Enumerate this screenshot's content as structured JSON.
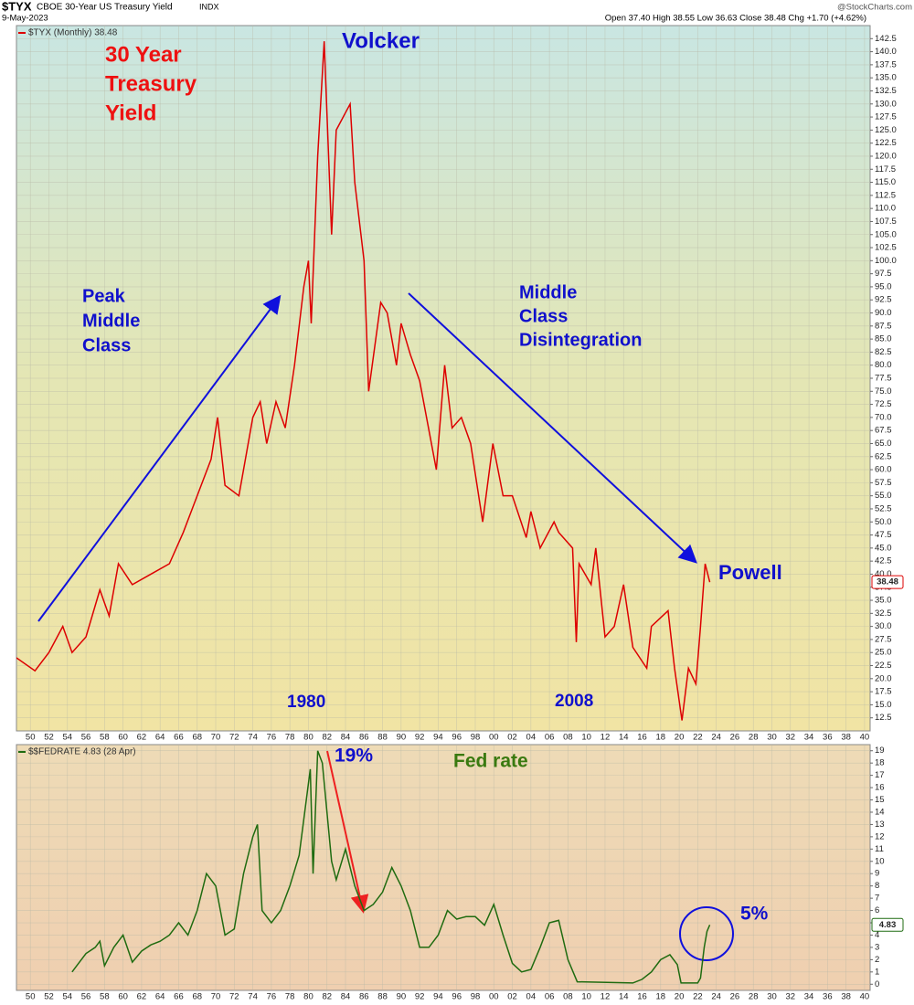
{
  "header": {
    "symbol": "$TYX",
    "name": "CBOE 30-Year US Treasury Yield",
    "exchange": "INDX",
    "date": "9-May-2023",
    "quote": "Open 37.40  High 38.55  Low 36.63  Close 38.48  Chg +1.70 (+4.62%)",
    "source": "@StockCharts.com"
  },
  "annotations": {
    "title_1": "30 Year",
    "title_2": "Treasury",
    "title_3": "Yield",
    "volcker": "Volcker",
    "peak_1": "Peak",
    "peak_2": "Middle",
    "peak_3": "Class",
    "dis_1": "Middle",
    "dis_2": "Class",
    "dis_3": "Disintegration",
    "powell": "Powell",
    "y1980": "1980",
    "y2008": "2008",
    "pct19": "19%",
    "fed": "Fed rate",
    "pct5": "5%"
  },
  "chart_data": [
    {
      "type": "line",
      "last_label": "38.48",
      "grid": true,
      "xlim": [
        1948.5,
        2040.6
      ],
      "ylim": [
        10,
        145
      ],
      "x": [
        1948.5,
        1950.5,
        1952,
        1953.5,
        1954.5,
        1956,
        1957.5,
        1958.5,
        1959.5,
        1961,
        1963,
        1965,
        1966.5,
        1968,
        1969.5,
        1970.2,
        1971,
        1972.5,
        1974,
        1974.8,
        1975.5,
        1976.5,
        1977.5,
        1978.5,
        1979.5,
        1980,
        1980.3,
        1981,
        1981.7,
        1982.5,
        1983,
        1984.5,
        1985,
        1986,
        1986.5,
        1987.8,
        1988.5,
        1989.5,
        1990,
        1991,
        1992,
        1993.8,
        1994.7,
        1995.5,
        1996.5,
        1997.5,
        1998.8,
        1999.9,
        2001,
        2002,
        2003.5,
        2004,
        2005,
        2006.5,
        2007,
        2008.5,
        2008.9,
        2009.2,
        2010.5,
        2011,
        2012,
        2013,
        2014,
        2015,
        2016.5,
        2017,
        2018.8,
        2019.5,
        2020.3,
        2021,
        2021.8,
        2022.3,
        2022.8,
        2023.3
      ],
      "series": [
        {
          "name": "$TYX (Monthly) 38.48",
          "color": "#dd0000",
          "values": [
            24,
            21.5,
            25,
            30,
            25,
            28,
            37,
            32,
            42,
            38,
            40,
            42,
            48,
            55,
            62,
            70,
            57,
            55,
            70,
            73,
            65,
            73,
            68,
            80,
            95,
            100,
            88,
            120,
            142,
            105,
            125,
            130,
            115,
            100,
            75,
            92,
            90,
            80,
            88,
            82,
            77,
            60,
            80,
            68,
            70,
            65,
            50,
            65,
            55,
            55,
            47,
            52,
            45,
            50,
            48,
            45,
            27,
            42,
            38,
            45,
            28,
            30,
            38,
            26,
            22,
            30,
            33,
            22,
            12,
            22,
            19,
            30,
            42,
            38.48
          ]
        }
      ],
      "yticks": [
        12.5,
        {
          "value": 15,
          "label": "15.0"
        },
        17.5,
        {
          "value": 20,
          "label": "20.0"
        },
        22.5,
        {
          "value": 25,
          "label": "25.0"
        },
        27.5,
        {
          "value": 30,
          "label": "30.0"
        },
        32.5,
        {
          "value": 35,
          "label": "35.0"
        },
        37.5,
        {
          "value": 40,
          "label": "40.0"
        },
        42.5,
        {
          "value": 45,
          "label": "45.0"
        },
        47.5,
        {
          "value": 50,
          "label": "50.0"
        },
        52.5,
        {
          "value": 55,
          "label": "55.0"
        },
        57.5,
        {
          "value": 60,
          "label": "60.0"
        },
        62.5,
        {
          "value": 65,
          "label": "65.0"
        },
        67.5,
        {
          "value": 70,
          "label": "70.0"
        },
        72.5,
        {
          "value": 75,
          "label": "75.0"
        },
        77.5,
        {
          "value": 80,
          "label": "80.0"
        },
        82.5,
        {
          "value": 85,
          "label": "85.0"
        },
        87.5,
        {
          "value": 90,
          "label": "90.0"
        },
        92.5,
        {
          "value": 95,
          "label": "95.0"
        },
        97.5,
        {
          "value": 100,
          "label": "100.0"
        },
        102.5,
        {
          "value": 105,
          "label": "105.0"
        },
        107.5,
        {
          "value": 110,
          "label": "110.0"
        },
        112.5,
        {
          "value": 115,
          "label": "115.0"
        },
        117.5,
        {
          "value": 120,
          "label": "120.0"
        },
        122.5,
        {
          "value": 125,
          "label": "125.0"
        },
        127.5,
        {
          "value": 130,
          "label": "130.0"
        },
        132.5,
        {
          "value": 135,
          "label": "135.0"
        },
        137.5,
        {
          "value": 140,
          "label": "140.0"
        },
        142.5
      ],
      "xticks": [
        {
          "value": 1950,
          "label": "50"
        },
        {
          "value": 1952,
          "label": "52"
        },
        {
          "value": 1954,
          "label": "54"
        },
        {
          "value": 1956,
          "label": "56"
        },
        {
          "value": 1958,
          "label": "58"
        },
        {
          "value": 1960,
          "label": "60"
        },
        {
          "value": 1962,
          "label": "62"
        },
        {
          "value": 1964,
          "label": "64"
        },
        {
          "value": 1966,
          "label": "66"
        },
        {
          "value": 1968,
          "label": "68"
        },
        {
          "value": 1970,
          "label": "70"
        },
        {
          "value": 1972,
          "label": "72"
        },
        {
          "value": 1974,
          "label": "74"
        },
        {
          "value": 1976,
          "label": "76"
        },
        {
          "value": 1978,
          "label": "78"
        },
        {
          "value": 1980,
          "label": "80"
        },
        {
          "value": 1982,
          "label": "82"
        },
        {
          "value": 1984,
          "label": "84"
        },
        {
          "value": 1986,
          "label": "86"
        },
        {
          "value": 1988,
          "label": "88"
        },
        {
          "value": 1990,
          "label": "90"
        },
        {
          "value": 1992,
          "label": "92"
        },
        {
          "value": 1994,
          "label": "94"
        },
        {
          "value": 1996,
          "label": "96"
        },
        {
          "value": 1998,
          "label": "98"
        },
        {
          "value": 2000,
          "label": "00"
        },
        {
          "value": 2002,
          "label": "02"
        },
        {
          "value": 2004,
          "label": "04"
        },
        {
          "value": 2006,
          "label": "06"
        },
        {
          "value": 2008,
          "label": "08"
        },
        {
          "value": 2010,
          "label": "10"
        },
        {
          "value": 2012,
          "label": "12"
        },
        {
          "value": 2014,
          "label": "14"
        },
        {
          "value": 2016,
          "label": "16"
        },
        {
          "value": 2018,
          "label": "18"
        },
        {
          "value": 2020,
          "label": "20"
        },
        {
          "value": 2022,
          "label": "22"
        },
        {
          "value": 2024,
          "label": "24"
        },
        {
          "value": 2026,
          "label": "26"
        },
        {
          "value": 2028,
          "label": "28"
        },
        {
          "value": 2030,
          "label": "30"
        },
        {
          "value": 2032,
          "label": "32"
        },
        {
          "value": 2034,
          "label": "34"
        },
        {
          "value": 2036,
          "label": "36"
        },
        {
          "value": 2038,
          "label": "38"
        },
        {
          "value": 2040,
          "label": "40"
        }
      ]
    },
    {
      "type": "line",
      "last_label": "4.83",
      "grid": true,
      "xlim": [
        1948.5,
        2040.6
      ],
      "ylim": [
        -0.5,
        19.5
      ],
      "x": [
        1954.5,
        1955,
        1956,
        1957,
        1957.5,
        1958,
        1959,
        1960,
        1961,
        1962,
        1963,
        1964,
        1965,
        1966,
        1967,
        1968,
        1969,
        1970,
        1971,
        1972,
        1973,
        1974,
        1974.5,
        1975,
        1976,
        1977,
        1978,
        1979,
        1980.2,
        1980.5,
        1981,
        1981.5,
        1982,
        1982.5,
        1983,
        1984,
        1985,
        1986,
        1987,
        1988,
        1989,
        1990,
        1991,
        1992,
        1993,
        1994,
        1995,
        1996,
        1997,
        1998,
        1999,
        2000,
        2001,
        2002,
        2003,
        2004,
        2005,
        2006,
        2007,
        2008,
        2009,
        2015,
        2016,
        2017,
        2018,
        2019,
        2019.8,
        2020.2,
        2022,
        2022.3,
        2022.7,
        2023,
        2023.3
      ],
      "series": [
        {
          "name": "$$FEDRATE 4.83 (28 Apr)",
          "color": "#1f6b10",
          "values": [
            1,
            1.5,
            2.5,
            3,
            3.5,
            1.5,
            3,
            4,
            1.8,
            2.7,
            3.2,
            3.5,
            4,
            5,
            4,
            6,
            9,
            8,
            4,
            4.5,
            9,
            12,
            13,
            6,
            5,
            6,
            8,
            10.5,
            17.5,
            9,
            19,
            18,
            14,
            10,
            8.5,
            11,
            8,
            6,
            6.5,
            7.5,
            9.5,
            8,
            6,
            3,
            3,
            4,
            6,
            5.3,
            5.5,
            5.5,
            4.8,
            6.5,
            4,
            1.7,
            1,
            1.2,
            3,
            5,
            5.2,
            2,
            0.2,
            0.1,
            0.4,
            1,
            2,
            2.4,
            1.6,
            0.1,
            0.1,
            0.5,
            3,
            4.3,
            4.83
          ]
        }
      ],
      "yticks": [
        0,
        1,
        2,
        3,
        4,
        5,
        6,
        7,
        8,
        9,
        10,
        11,
        12,
        13,
        14,
        15,
        16,
        17,
        18,
        19
      ],
      "xticks": [
        {
          "value": 1950,
          "label": "50"
        },
        {
          "value": 1952,
          "label": "52"
        },
        {
          "value": 1954,
          "label": "54"
        },
        {
          "value": 1956,
          "label": "56"
        },
        {
          "value": 1958,
          "label": "58"
        },
        {
          "value": 1960,
          "label": "60"
        },
        {
          "value": 1962,
          "label": "62"
        },
        {
          "value": 1964,
          "label": "64"
        },
        {
          "value": 1966,
          "label": "66"
        },
        {
          "value": 1968,
          "label": "68"
        },
        {
          "value": 1970,
          "label": "70"
        },
        {
          "value": 1972,
          "label": "72"
        },
        {
          "value": 1974,
          "label": "74"
        },
        {
          "value": 1976,
          "label": "76"
        },
        {
          "value": 1978,
          "label": "78"
        },
        {
          "value": 1980,
          "label": "80"
        },
        {
          "value": 1982,
          "label": "82"
        },
        {
          "value": 1984,
          "label": "84"
        },
        {
          "value": 1986,
          "label": "86"
        },
        {
          "value": 1988,
          "label": "88"
        },
        {
          "value": 1990,
          "label": "90"
        },
        {
          "value": 1992,
          "label": "92"
        },
        {
          "value": 1994,
          "label": "94"
        },
        {
          "value": 1996,
          "label": "96"
        },
        {
          "value": 1998,
          "label": "98"
        },
        {
          "value": 2000,
          "label": "00"
        },
        {
          "value": 2002,
          "label": "02"
        },
        {
          "value": 2004,
          "label": "04"
        },
        {
          "value": 2006,
          "label": "06"
        },
        {
          "value": 2008,
          "label": "08"
        },
        {
          "value": 2010,
          "label": "10"
        },
        {
          "value": 2012,
          "label": "12"
        },
        {
          "value": 2014,
          "label": "14"
        },
        {
          "value": 2016,
          "label": "16"
        },
        {
          "value": 2018,
          "label": "18"
        },
        {
          "value": 2020,
          "label": "20"
        },
        {
          "value": 2022,
          "label": "22"
        },
        {
          "value": 2024,
          "label": "24"
        },
        {
          "value": 2026,
          "label": "26"
        },
        {
          "value": 2028,
          "label": "28"
        },
        {
          "value": 2030,
          "label": "30"
        },
        {
          "value": 2032,
          "label": "32"
        },
        {
          "value": 2034,
          "label": "34"
        },
        {
          "value": 2036,
          "label": "36"
        },
        {
          "value": 2038,
          "label": "38"
        },
        {
          "value": 2040,
          "label": "40"
        }
      ]
    }
  ]
}
